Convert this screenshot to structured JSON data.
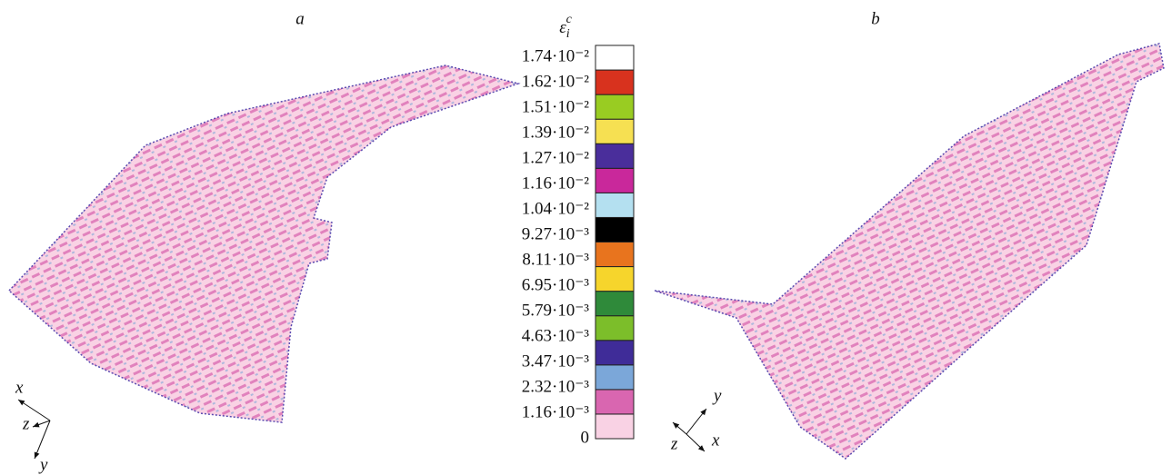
{
  "panels": [
    {
      "label": "a",
      "axes": [
        "x",
        "z",
        "y"
      ]
    },
    {
      "label": "b",
      "axes": [
        "y",
        "z",
        "x"
      ]
    }
  ],
  "colorbar": {
    "title": {
      "symbol": "ε",
      "sub": "i",
      "sup": "c"
    },
    "levels": [
      {
        "label": "0",
        "color": "#f9d2e4"
      },
      {
        "label": "1.16·10⁻³",
        "color": "#d966b0"
      },
      {
        "label": "2.32·10⁻³",
        "color": "#7ba7d9"
      },
      {
        "label": "3.47·10⁻³",
        "color": "#3f2c98"
      },
      {
        "label": "4.63·10⁻³",
        "color": "#7cbe2a"
      },
      {
        "label": "5.79·10⁻³",
        "color": "#2f8a3a"
      },
      {
        "label": "6.95·10⁻³",
        "color": "#f6d52c"
      },
      {
        "label": "8.11·10⁻³",
        "color": "#e8741e"
      },
      {
        "label": "9.27·10⁻³",
        "color": "#000000"
      },
      {
        "label": "1.04·10⁻²",
        "color": "#b4e0f0"
      },
      {
        "label": "1.16·10⁻²",
        "color": "#c9289b"
      },
      {
        "label": "1.27·10⁻²",
        "color": "#4a2e9b"
      },
      {
        "label": "1.39·10⁻²",
        "color": "#f6e052"
      },
      {
        "label": "1.51·10⁻²",
        "color": "#99cc22"
      },
      {
        "label": "1.62·10⁻²",
        "color": "#d8321e"
      },
      {
        "label": "1.74·10⁻²",
        "color": "#ffffff"
      }
    ]
  }
}
